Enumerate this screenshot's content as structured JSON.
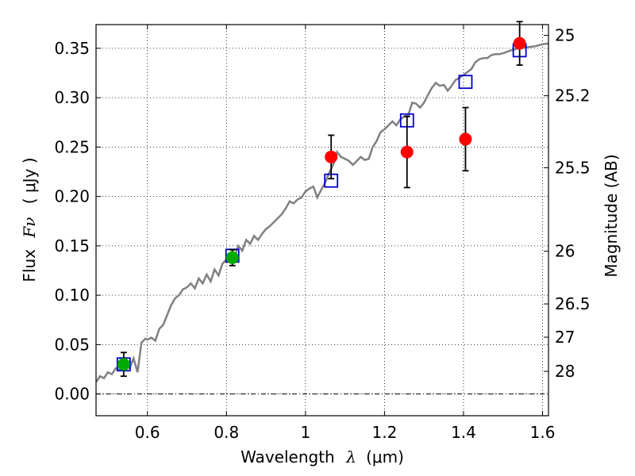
{
  "chart_data": {
    "type": "scatter",
    "title": "",
    "xlabel_prefix": "Wavelength",
    "xlabel_symbol": "λ",
    "xlabel_unit": "(μm)",
    "ylabel_prefix": "Flux",
    "ylabel_symbol": "Fν",
    "ylabel_unit": "( μJy )",
    "y2label": "Magnitude (AB)",
    "xlim": [
      0.47,
      1.615
    ],
    "ylim": [
      -0.022,
      0.374
    ],
    "grid": true,
    "colors": {
      "spectrum": "#808080",
      "model_box": "#0000cc",
      "optical_point": "#00aa00",
      "nir_point": "#ff0000",
      "errorbar": "#000000",
      "zero_line": "#000000"
    },
    "x_ticks": [
      {
        "value": 0.6,
        "label": "0.6"
      },
      {
        "value": 0.8,
        "label": "0.8"
      },
      {
        "value": 1.0,
        "label": "1"
      },
      {
        "value": 1.2,
        "label": "1.2"
      },
      {
        "value": 1.4,
        "label": "1.4"
      },
      {
        "value": 1.6,
        "label": "1.6"
      }
    ],
    "y_ticks": [
      {
        "value": 0.0,
        "label": "0.00"
      },
      {
        "value": 0.05,
        "label": "0.05"
      },
      {
        "value": 0.1,
        "label": "0.10"
      },
      {
        "value": 0.15,
        "label": "0.15"
      },
      {
        "value": 0.2,
        "label": "0.20"
      },
      {
        "value": 0.25,
        "label": "0.25"
      },
      {
        "value": 0.3,
        "label": "0.30"
      },
      {
        "value": 0.35,
        "label": "0.35"
      }
    ],
    "mag_ticks": [
      {
        "value": 0.3631,
        "label": "25"
      },
      {
        "value": 0.302,
        "label": "25.2"
      },
      {
        "value": 0.2291,
        "label": "25.5"
      },
      {
        "value": 0.1445,
        "label": "26"
      },
      {
        "value": 0.0912,
        "label": "26.5"
      },
      {
        "value": 0.0575,
        "label": "27"
      },
      {
        "value": 0.0229,
        "label": "28"
      }
    ],
    "spectrum": [
      [
        0.47,
        0.012
      ],
      [
        0.48,
        0.018
      ],
      [
        0.49,
        0.016
      ],
      [
        0.5,
        0.022
      ],
      [
        0.51,
        0.02
      ],
      [
        0.52,
        0.026
      ],
      [
        0.53,
        0.024
      ],
      [
        0.545,
        0.03
      ],
      [
        0.555,
        0.026
      ],
      [
        0.565,
        0.036
      ],
      [
        0.575,
        0.022
      ],
      [
        0.585,
        0.052
      ],
      [
        0.595,
        0.056
      ],
      [
        0.6,
        0.055
      ],
      [
        0.61,
        0.057
      ],
      [
        0.62,
        0.054
      ],
      [
        0.63,
        0.066
      ],
      [
        0.64,
        0.07
      ],
      [
        0.65,
        0.08
      ],
      [
        0.66,
        0.09
      ],
      [
        0.67,
        0.097
      ],
      [
        0.68,
        0.1
      ],
      [
        0.69,
        0.106
      ],
      [
        0.7,
        0.108
      ],
      [
        0.71,
        0.112
      ],
      [
        0.72,
        0.107
      ],
      [
        0.73,
        0.117
      ],
      [
        0.74,
        0.112
      ],
      [
        0.75,
        0.121
      ],
      [
        0.76,
        0.114
      ],
      [
        0.77,
        0.126
      ],
      [
        0.78,
        0.12
      ],
      [
        0.79,
        0.132
      ],
      [
        0.8,
        0.136
      ],
      [
        0.81,
        0.142
      ],
      [
        0.82,
        0.138
      ],
      [
        0.83,
        0.15
      ],
      [
        0.84,
        0.145
      ],
      [
        0.85,
        0.156
      ],
      [
        0.86,
        0.152
      ],
      [
        0.87,
        0.16
      ],
      [
        0.88,
        0.156
      ],
      [
        0.89,
        0.162
      ],
      [
        0.9,
        0.167
      ],
      [
        0.91,
        0.17
      ],
      [
        0.92,
        0.174
      ],
      [
        0.93,
        0.178
      ],
      [
        0.94,
        0.182
      ],
      [
        0.95,
        0.188
      ],
      [
        0.96,
        0.195
      ],
      [
        0.97,
        0.193
      ],
      [
        0.98,
        0.197
      ],
      [
        0.99,
        0.199
      ],
      [
        1.0,
        0.205
      ],
      [
        1.01,
        0.208
      ],
      [
        1.02,
        0.21
      ],
      [
        1.03,
        0.199
      ],
      [
        1.04,
        0.207
      ],
      [
        1.05,
        0.214
      ],
      [
        1.06,
        0.224
      ],
      [
        1.07,
        0.232
      ],
      [
        1.08,
        0.245
      ],
      [
        1.09,
        0.24
      ],
      [
        1.1,
        0.238
      ],
      [
        1.11,
        0.236
      ],
      [
        1.12,
        0.232
      ],
      [
        1.13,
        0.236
      ],
      [
        1.14,
        0.24
      ],
      [
        1.15,
        0.237
      ],
      [
        1.16,
        0.238
      ],
      [
        1.17,
        0.25
      ],
      [
        1.18,
        0.256
      ],
      [
        1.19,
        0.265
      ],
      [
        1.2,
        0.268
      ],
      [
        1.21,
        0.272
      ],
      [
        1.22,
        0.276
      ],
      [
        1.23,
        0.272
      ],
      [
        1.24,
        0.278
      ],
      [
        1.25,
        0.281
      ],
      [
        1.26,
        0.282
      ],
      [
        1.27,
        0.295
      ],
      [
        1.28,
        0.294
      ],
      [
        1.29,
        0.29
      ],
      [
        1.3,
        0.295
      ],
      [
        1.31,
        0.303
      ],
      [
        1.32,
        0.31
      ],
      [
        1.33,
        0.315
      ],
      [
        1.34,
        0.312
      ],
      [
        1.35,
        0.313
      ],
      [
        1.36,
        0.307
      ],
      [
        1.37,
        0.312
      ],
      [
        1.38,
        0.318
      ],
      [
        1.39,
        0.32
      ],
      [
        1.4,
        0.323
      ],
      [
        1.41,
        0.326
      ],
      [
        1.42,
        0.329
      ],
      [
        1.43,
        0.336
      ],
      [
        1.44,
        0.339
      ],
      [
        1.45,
        0.34
      ],
      [
        1.46,
        0.34
      ],
      [
        1.47,
        0.343
      ],
      [
        1.48,
        0.344
      ],
      [
        1.49,
        0.344
      ],
      [
        1.5,
        0.345
      ],
      [
        1.52,
        0.348
      ],
      [
        1.54,
        0.35
      ],
      [
        1.56,
        0.351
      ],
      [
        1.58,
        0.352
      ],
      [
        1.6,
        0.354
      ],
      [
        1.615,
        0.355
      ]
    ],
    "model_boxes": [
      {
        "x": 0.54,
        "y": 0.03
      },
      {
        "x": 0.815,
        "y": 0.14
      },
      {
        "x": 1.065,
        "y": 0.216
      },
      {
        "x": 1.257,
        "y": 0.277
      },
      {
        "x": 1.405,
        "y": 0.316
      },
      {
        "x": 1.542,
        "y": 0.348
      }
    ],
    "points": [
      {
        "x": 0.54,
        "y": 0.03,
        "err": 0.012,
        "band": "optical"
      },
      {
        "x": 0.815,
        "y": 0.138,
        "err": 0.008,
        "band": "optical"
      },
      {
        "x": 1.065,
        "y": 0.24,
        "err": 0.022,
        "band": "nir"
      },
      {
        "x": 1.257,
        "y": 0.245,
        "err": 0.036,
        "band": "nir"
      },
      {
        "x": 1.405,
        "y": 0.258,
        "err": 0.032,
        "band": "nir"
      },
      {
        "x": 1.542,
        "y": 0.355,
        "err": 0.022,
        "band": "nir"
      }
    ]
  }
}
